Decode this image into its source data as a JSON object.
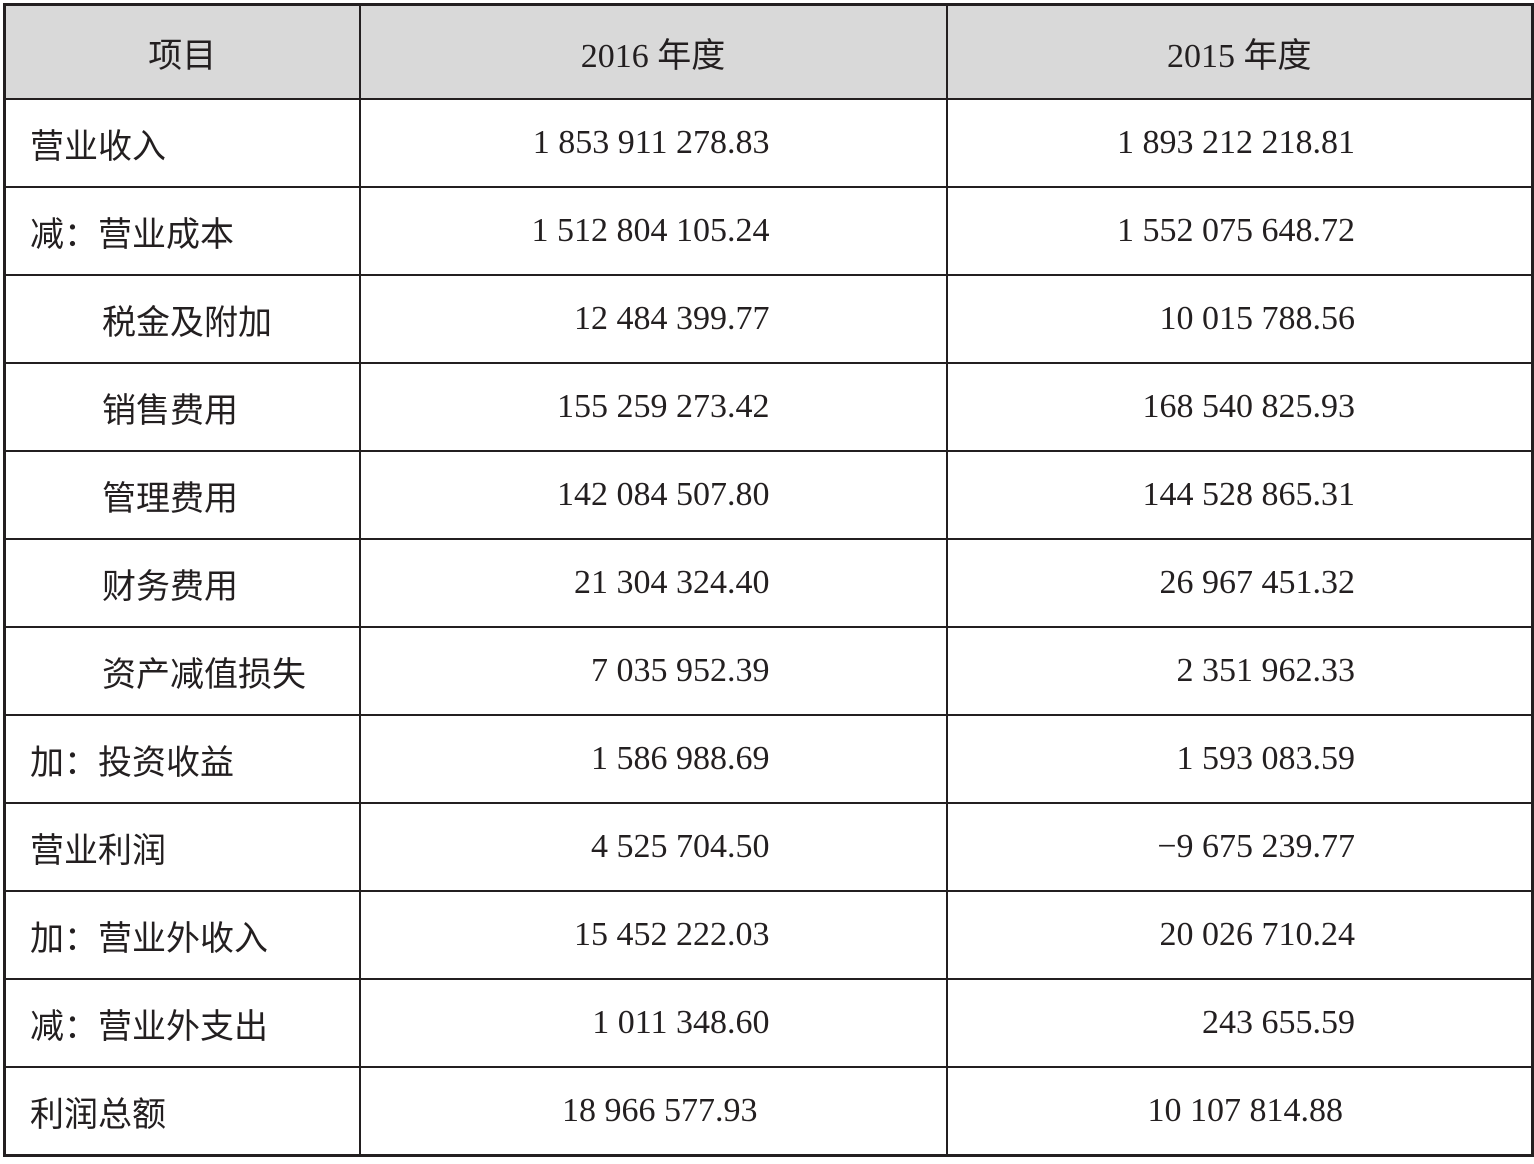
{
  "table": {
    "header": [
      "项目",
      "2016 年度",
      "2015 年度"
    ],
    "rows": [
      [
        "营业收入",
        "1 853 911 278.83",
        "1 893 212 218.81"
      ],
      [
        "减：营业成本",
        "1 512 804 105.24",
        "1 552 075 648.72"
      ],
      [
        "税金及附加",
        "12 484 399.77",
        "10 015 788.56"
      ],
      [
        "销售费用",
        "155 259 273.42",
        "168 540 825.93"
      ],
      [
        "管理费用",
        "142 084 507.80",
        "144 528 865.31"
      ],
      [
        "财务费用",
        "21 304 324.40",
        "26 967 451.32"
      ],
      [
        "资产减值损失",
        "7 035 952.39",
        "2 351 962.33"
      ],
      [
        "加：投资收益",
        "1 586 988.69",
        "1 593 083.59"
      ],
      [
        "营业利润",
        "4 525 704.50",
        "−9 675 239.77"
      ],
      [
        "加：营业外收入",
        "15 452 222.03",
        "20 026 710.24"
      ],
      [
        "减：营业外支出",
        "1 011 348.60",
        "243 655.59"
      ],
      [
        "利润总额",
        "18 966 577.93",
        "10 107 814.88"
      ]
    ]
  }
}
